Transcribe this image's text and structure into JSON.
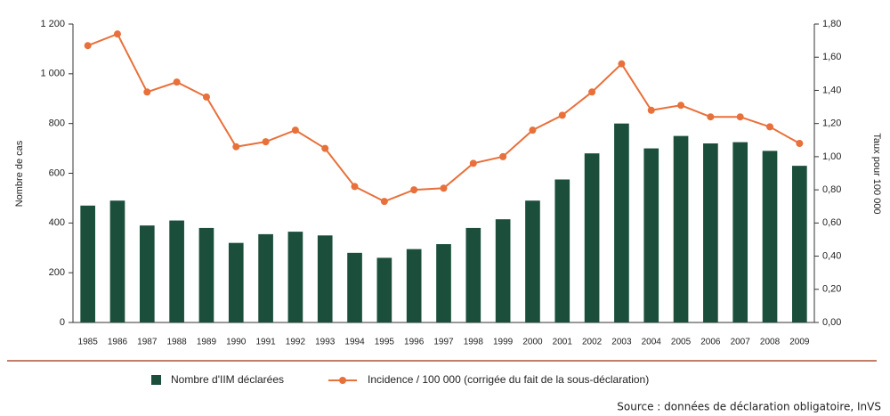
{
  "chart_data": {
    "type": "bar_line",
    "categories": [
      "1985",
      "1986",
      "1987",
      "1988",
      "1989",
      "1990",
      "1991",
      "1992",
      "1993",
      "1994",
      "1995",
      "1996",
      "1997",
      "1998",
      "1999",
      "2000",
      "2001",
      "2002",
      "2003",
      "2004",
      "2005",
      "2006",
      "2007",
      "2008",
      "2009"
    ],
    "series": [
      {
        "name": "Nombre d'IIM déclarées",
        "type": "bar",
        "color": "#1b4f3c",
        "axis": "y",
        "values": [
          470,
          490,
          390,
          410,
          380,
          320,
          355,
          365,
          350,
          280,
          260,
          295,
          315,
          380,
          415,
          490,
          575,
          680,
          800,
          700,
          750,
          720,
          725,
          690,
          630
        ]
      },
      {
        "name": "Incidence / 100 000 (corrigée du fait de la sous-déclaration)",
        "type": "line",
        "color": "#e8703a",
        "axis": "y2",
        "values": [
          1.67,
          1.74,
          1.39,
          1.45,
          1.36,
          1.06,
          1.09,
          1.16,
          1.05,
          0.82,
          0.73,
          0.8,
          0.81,
          0.96,
          1.0,
          1.16,
          1.25,
          1.39,
          1.56,
          1.28,
          1.31,
          1.24,
          1.24,
          1.18,
          1.08
        ]
      }
    ],
    "ylabel": "Nombre de cas",
    "y2label": "Taux pour 100 000",
    "ylim": [
      0,
      1200
    ],
    "yticks": [
      0,
      200,
      400,
      600,
      800,
      {
        "value": 1000,
        "label": "1 000"
      },
      {
        "value": 1200,
        "label": "1 200"
      }
    ],
    "y2lim": [
      0,
      1.8
    ],
    "y2ticks": [
      {
        "value": 0,
        "label": "0,00"
      },
      {
        "value": 0.2,
        "label": "0,20"
      },
      {
        "value": 0.4,
        "label": "0,40"
      },
      {
        "value": 0.6,
        "label": "0,60"
      },
      {
        "value": 0.8,
        "label": "0,80"
      },
      {
        "value": 1.0,
        "label": "1,00"
      },
      {
        "value": 1.2,
        "label": "1,20"
      },
      {
        "value": 1.4,
        "label": "1,40"
      },
      {
        "value": 1.6,
        "label": "1,60"
      },
      {
        "value": 1.8,
        "label": "1,80"
      }
    ],
    "source": "Source : données de déclaration obligatoire, InVS",
    "grid": false
  }
}
